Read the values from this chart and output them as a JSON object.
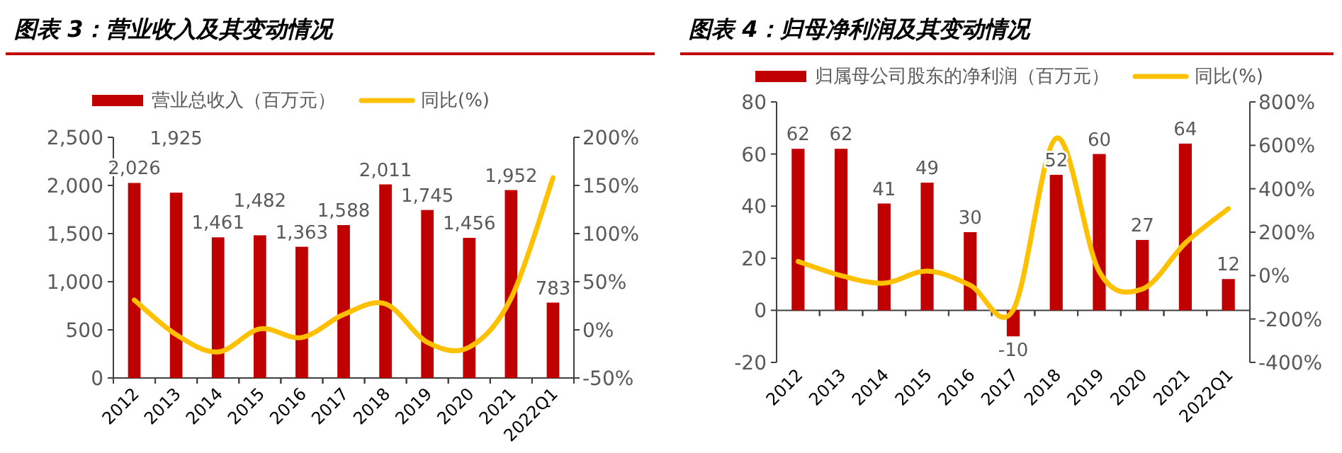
{
  "chart_data": [
    {
      "type": "bar",
      "title": "图表 3：营业收入及其变动情况",
      "categories": [
        "2012",
        "2013",
        "2014",
        "2015",
        "2016",
        "2017",
        "2018",
        "2019",
        "2020",
        "2021",
        "2022Q1"
      ],
      "series": [
        {
          "name": "营业总收入（百万元）",
          "color": "#c00000",
          "values": [
            2026,
            1925,
            1461,
            1482,
            1363,
            1588,
            2011,
            1745,
            1456,
            1952,
            783
          ],
          "value_labels": [
            "2,026",
            "1,925",
            "1,461",
            "1,482",
            "1,363",
            "1,588",
            "2,011",
            "1,745",
            "1,456",
            "1,952",
            "783"
          ]
        },
        {
          "name": "同比(%)",
          "type": "line",
          "axis": "y2",
          "color": "#ffc000",
          "values": [
            31,
            -5,
            -23,
            1,
            -8,
            16,
            27,
            -13,
            -18,
            33,
            158
          ]
        }
      ],
      "ylim": [
        0,
        2500
      ],
      "yticks": [
        0,
        500,
        {
          "value": 1000,
          "label": "1,000"
        },
        {
          "value": 1500,
          "label": "1,500"
        },
        {
          "value": 2000,
          "label": "2,000"
        },
        {
          "value": 2500,
          "label": "2,500"
        }
      ],
      "y2lim": [
        -50,
        200
      ],
      "y2ticks": [
        {
          "value": -50,
          "label": "-50%"
        },
        {
          "value": 0,
          "label": "0%"
        },
        {
          "value": 50,
          "label": "50%"
        },
        {
          "value": 100,
          "label": "100%"
        },
        {
          "value": 150,
          "label": "150%"
        },
        {
          "value": 200,
          "label": "200%"
        }
      ],
      "legend": "top",
      "grid": false
    },
    {
      "type": "bar",
      "title": "图表 4：归母净利润及其变动情况",
      "categories": [
        "2012",
        "2013",
        "2014",
        "2015",
        "2016",
        "2017",
        "2018",
        "2019",
        "2020",
        "2021",
        "2022Q1"
      ],
      "series": [
        {
          "name": "归属母公司股东的净利润（百万元）",
          "color": "#c00000",
          "values": [
            62,
            62,
            41,
            49,
            30,
            -10,
            52,
            60,
            27,
            64,
            12
          ],
          "value_labels": [
            "62",
            "62",
            "41",
            "49",
            "30",
            "-10",
            "52",
            "60",
            "27",
            "64",
            "12"
          ]
        },
        {
          "name": "同比(%)",
          "type": "line",
          "axis": "y2",
          "color": "#ffc000",
          "values": [
            65,
            0,
            -35,
            21,
            -44,
            -158,
            633,
            18,
            -62,
            150,
            308
          ]
        }
      ],
      "ylim": [
        -20,
        80
      ],
      "yticks": [
        -20,
        0,
        20,
        40,
        60,
        80
      ],
      "y2lim": [
        -400,
        800
      ],
      "y2ticks": [
        {
          "value": -400,
          "label": "-400%"
        },
        {
          "value": -200,
          "label": "-200%"
        },
        {
          "value": 0,
          "label": "0%"
        },
        {
          "value": 200,
          "label": "200%"
        },
        {
          "value": 400,
          "label": "400%"
        },
        {
          "value": 600,
          "label": "600%"
        },
        {
          "value": 800,
          "label": "800%"
        }
      ],
      "legend": "top",
      "grid": false
    }
  ]
}
